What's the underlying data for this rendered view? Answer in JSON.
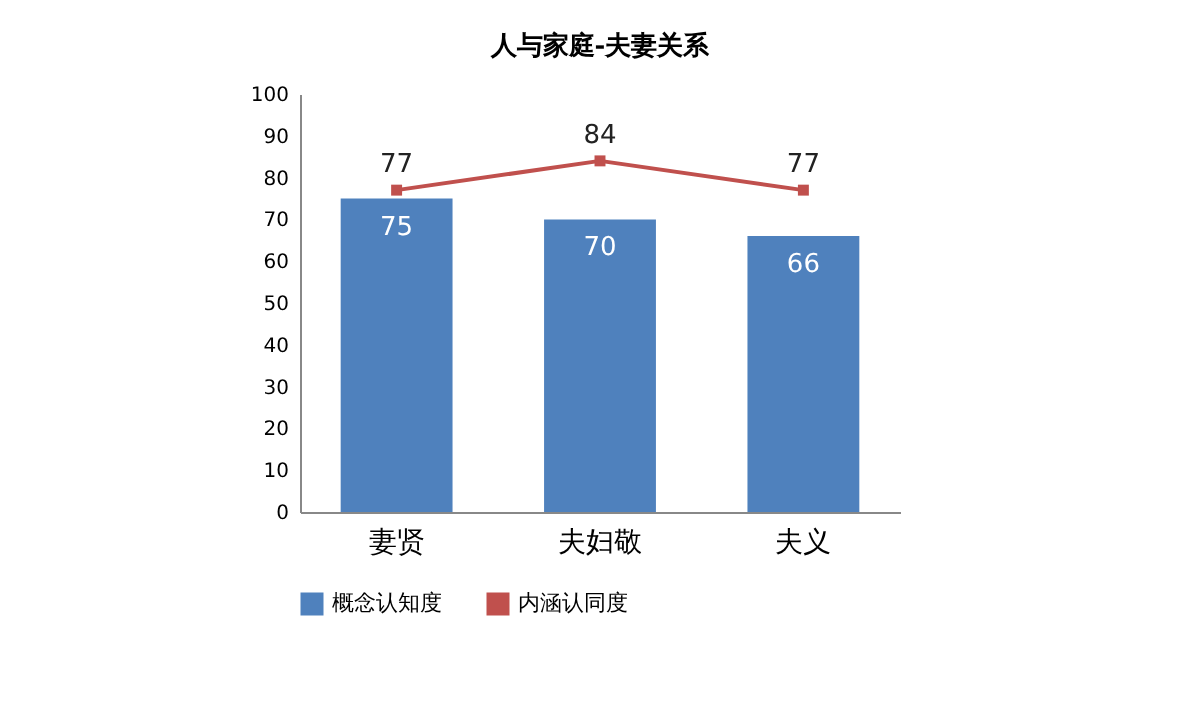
{
  "chart_data": {
    "type": "bar",
    "title": "人与家庭-夫妻关系",
    "categories": [
      "妻贤",
      "夫妇敬",
      "夫义"
    ],
    "series": [
      {
        "name": "概念认知度",
        "color": "#4f81bd",
        "values": [
          75,
          70,
          66
        ]
      },
      {
        "name": "内涵认同度",
        "type": "line",
        "color": "#c0504d",
        "values": [
          77,
          84,
          77
        ],
        "marker": "square"
      }
    ],
    "ylim": [
      0,
      100
    ],
    "yticks": [
      0,
      10,
      20,
      30,
      40,
      50,
      60,
      70,
      80,
      90,
      100
    ],
    "data_labels": true,
    "legend": "bottom",
    "grid": false
  }
}
